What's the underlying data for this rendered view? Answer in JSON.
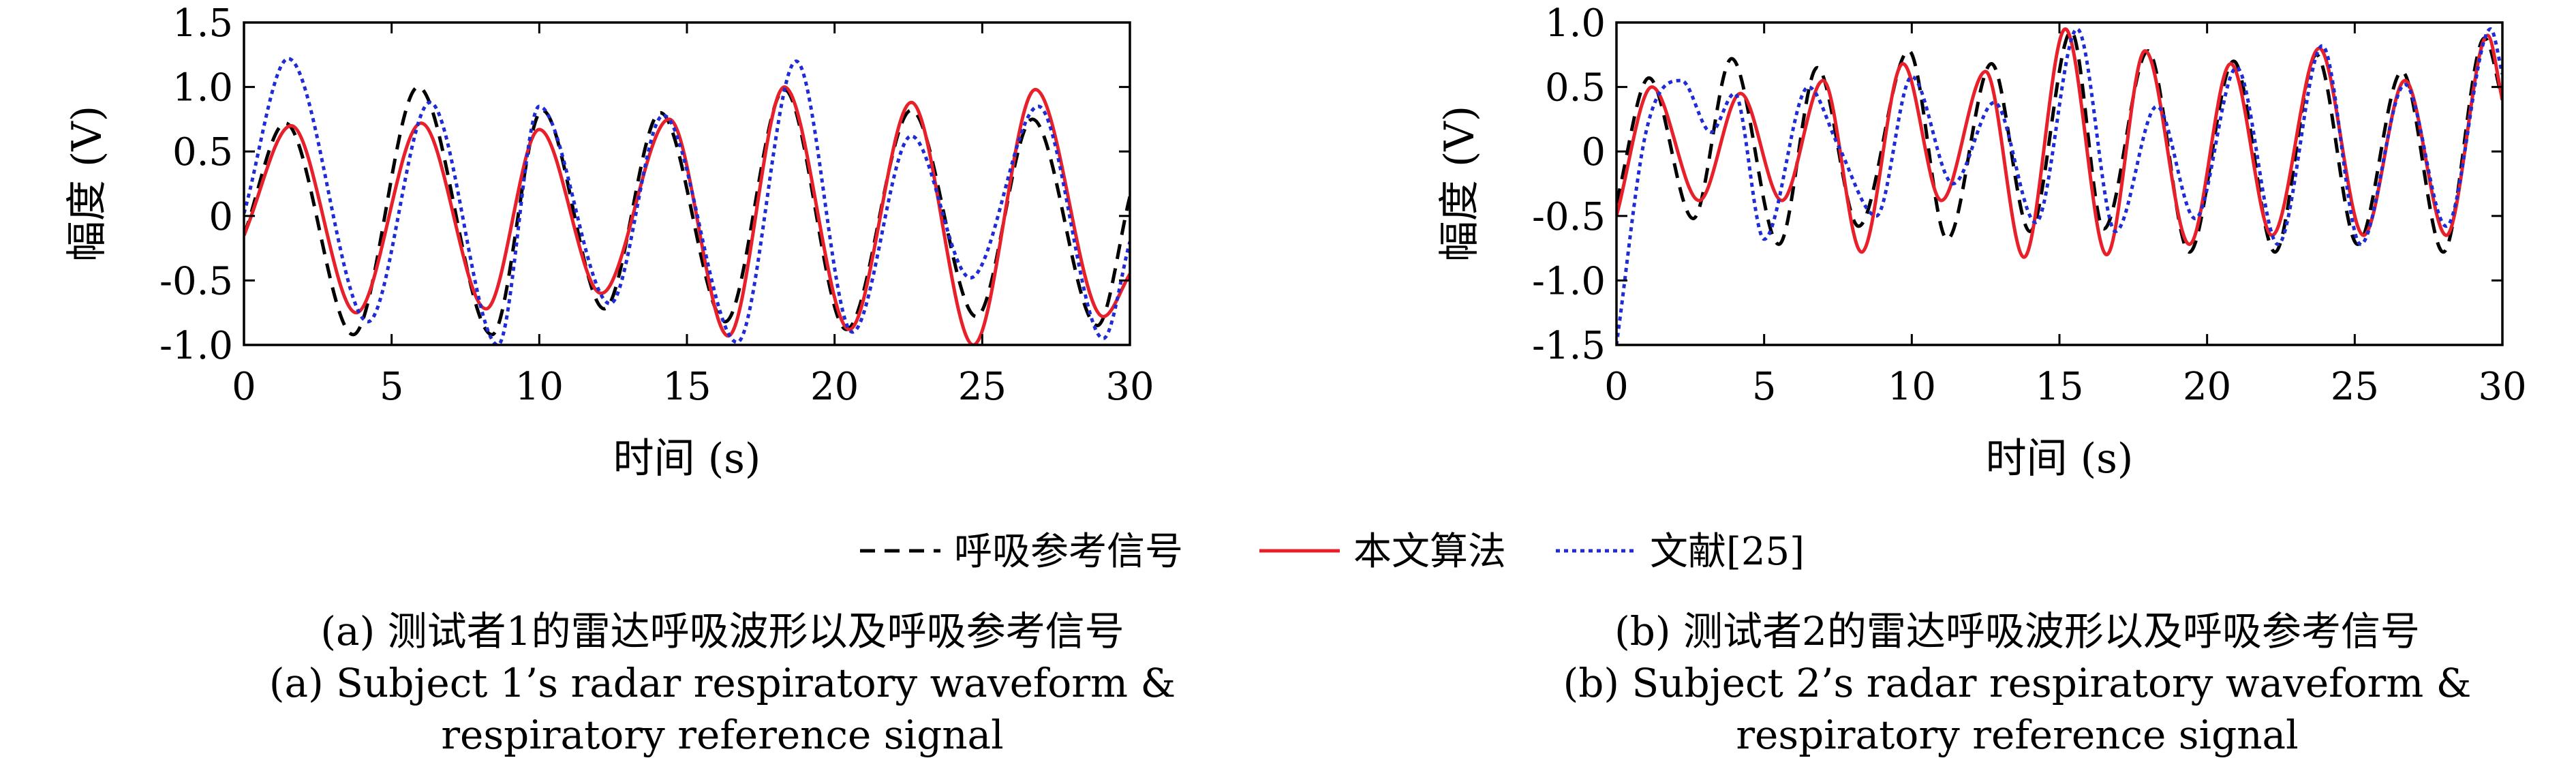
{
  "chart_data": [
    {
      "type": "line",
      "panel": "a",
      "xlabel": "时间 (s)",
      "ylabel": "幅度 (V)",
      "xlim": [
        0,
        30
      ],
      "ylim": [
        -1.0,
        1.5
      ],
      "xticks": [
        0,
        5,
        10,
        15,
        20,
        25,
        30
      ],
      "xtick_labels": [
        "0",
        "5",
        "10",
        "15",
        "20",
        "25",
        "30"
      ],
      "yticks": [
        -1.0,
        -0.5,
        0,
        0.5,
        1.0,
        1.5
      ],
      "ytick_labels": [
        "-1.0",
        "-0.5",
        "0",
        "0.5",
        "1.0",
        "1.5"
      ],
      "grid": false,
      "series": [
        {
          "name": "呼吸参考信号",
          "color": "#000000",
          "style": "dashed",
          "x": [
            0,
            1.4,
            3.7,
            5.9,
            8.4,
            10.1,
            12.2,
            14.1,
            16.3,
            18.3,
            20.4,
            22.6,
            24.8,
            26.7,
            28.9,
            30
          ],
          "y": [
            -0.15,
            0.72,
            -0.92,
            1.0,
            -0.92,
            0.82,
            -0.72,
            0.8,
            -0.82,
            0.98,
            -0.88,
            0.82,
            -0.78,
            0.75,
            -0.85,
            0.15
          ]
        },
        {
          "name": "本文算法",
          "color": "#e8202a",
          "style": "solid",
          "x": [
            0,
            1.6,
            3.8,
            6.0,
            8.2,
            10.0,
            12.1,
            14.4,
            16.4,
            18.3,
            20.5,
            22.6,
            24.7,
            26.8,
            29.1,
            30
          ],
          "y": [
            -0.15,
            0.7,
            -0.75,
            0.72,
            -0.72,
            0.67,
            -0.6,
            0.75,
            -0.93,
            1.0,
            -0.88,
            0.88,
            -1.0,
            0.98,
            -0.78,
            -0.45
          ]
        },
        {
          "name": "文献[25]",
          "color": "#1f2bd6",
          "style": "dotted",
          "x": [
            0,
            1.5,
            4.2,
            6.3,
            8.6,
            10.0,
            12.4,
            14.2,
            16.7,
            18.7,
            20.6,
            22.6,
            24.6,
            26.9,
            29.1,
            30
          ],
          "y": [
            0.02,
            1.22,
            -0.82,
            0.88,
            -1.0,
            0.85,
            -0.68,
            0.78,
            -0.98,
            1.2,
            -0.9,
            0.62,
            -0.48,
            0.85,
            -0.95,
            -0.2
          ]
        }
      ]
    },
    {
      "type": "line",
      "panel": "b",
      "xlabel": "时间 (s)",
      "ylabel": "幅度 (V)",
      "xlim": [
        0,
        30
      ],
      "ylim": [
        -1.5,
        1.0
      ],
      "xticks": [
        0,
        5,
        10,
        15,
        20,
        25,
        30
      ],
      "xtick_labels": [
        "0",
        "5",
        "10",
        "15",
        "20",
        "25",
        "30"
      ],
      "yticks": [
        -1.5,
        -1.0,
        -0.5,
        0,
        0.5,
        1.0
      ],
      "ytick_labels": [
        "-1.5",
        "-1.0",
        "-0.5",
        "0",
        "0.5",
        "1.0"
      ],
      "grid": false,
      "series": [
        {
          "name": "呼吸参考信号",
          "color": "#000000",
          "style": "dashed",
          "x": [
            0,
            1.1,
            2.6,
            3.9,
            5.5,
            6.8,
            8.2,
            9.9,
            11.2,
            12.7,
            14.0,
            15.4,
            16.5,
            18.0,
            19.4,
            20.9,
            22.3,
            23.7,
            25.1,
            26.6,
            28.0,
            29.4,
            30
          ],
          "y": [
            -0.4,
            0.57,
            -0.52,
            0.72,
            -0.72,
            0.65,
            -0.58,
            0.78,
            -0.68,
            0.68,
            -0.62,
            0.93,
            -0.6,
            0.78,
            -0.78,
            0.7,
            -0.78,
            0.75,
            -0.72,
            0.62,
            -0.78,
            0.88,
            0.4
          ]
        },
        {
          "name": "本文算法",
          "color": "#e8202a",
          "style": "solid",
          "x": [
            0,
            1.2,
            2.8,
            4.2,
            5.6,
            7.0,
            8.3,
            9.7,
            11.0,
            12.5,
            13.8,
            15.2,
            16.6,
            17.9,
            19.4,
            20.8,
            22.2,
            23.8,
            25.3,
            26.7,
            28.1,
            29.5,
            30
          ],
          "y": [
            -0.5,
            0.5,
            -0.38,
            0.45,
            -0.38,
            0.55,
            -0.78,
            0.68,
            -0.38,
            0.62,
            -0.82,
            0.95,
            -0.8,
            0.78,
            -0.72,
            0.68,
            -0.65,
            0.8,
            -0.65,
            0.55,
            -0.65,
            0.9,
            0.4
          ]
        },
        {
          "name": "文献[25]",
          "color": "#1f2bd6",
          "style": "dotted",
          "x": [
            0,
            1.0,
            2.2,
            3.2,
            4.0,
            5.0,
            6.5,
            7.5,
            8.8,
            10.0,
            11.4,
            12.8,
            14.2,
            15.6,
            16.9,
            18.3,
            19.6,
            21.0,
            22.4,
            23.9,
            25.2,
            26.7,
            28.1,
            29.6,
            30
          ],
          "y": [
            -1.5,
            0.15,
            0.55,
            0.15,
            0.45,
            -0.68,
            0.5,
            0.05,
            -0.5,
            0.58,
            -0.25,
            0.38,
            -0.55,
            0.95,
            -0.62,
            0.35,
            -0.52,
            0.65,
            -0.72,
            0.82,
            -0.72,
            0.52,
            -0.58,
            0.95,
            0.6
          ]
        }
      ]
    }
  ],
  "legend": {
    "items": [
      {
        "label": "呼吸参考信号",
        "color": "#000000",
        "style": "dashed"
      },
      {
        "label": "本文算法",
        "color": "#e8202a",
        "style": "solid"
      },
      {
        "label": "文献[25]",
        "color": "#1f2bd6",
        "style": "dotted"
      }
    ]
  },
  "captions": {
    "a": {
      "line1": "(a) 测试者1的雷达呼吸波形以及呼吸参考信号",
      "line2": "(a) Subject 1’s radar respiratory waveform &",
      "line3": "respiratory reference signal"
    },
    "b": {
      "line1": "(b) 测试者2的雷达呼吸波形以及呼吸参考信号",
      "line2": "(b) Subject 2’s radar respiratory waveform &",
      "line3": "respiratory reference signal"
    }
  }
}
